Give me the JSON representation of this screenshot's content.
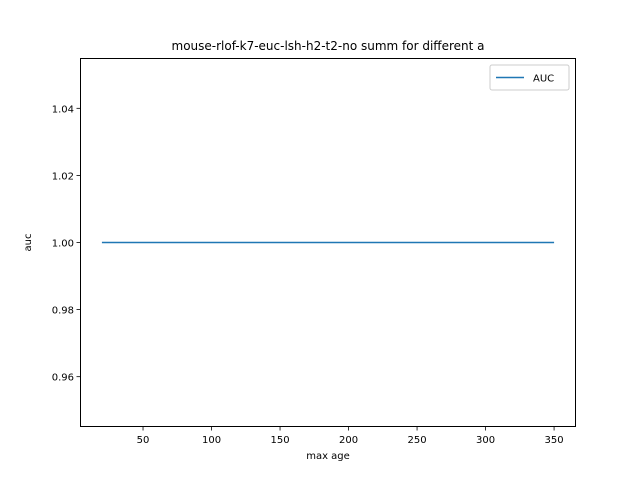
{
  "chart_data": {
    "type": "line",
    "title": "mouse-rlof-k7-euc-lsh-h2-t2-no summ for different a",
    "xlabel": "max age",
    "ylabel": "auc",
    "xlim": [
      4,
      366
    ],
    "ylim": [
      0.945,
      1.055
    ],
    "x_ticks": [
      50,
      100,
      150,
      200,
      250,
      300,
      350
    ],
    "y_ticks": [
      0.96,
      0.98,
      1.0,
      1.02,
      1.04
    ],
    "x_tick_labels": [
      "50",
      "100",
      "150",
      "200",
      "250",
      "300",
      "350"
    ],
    "y_tick_labels": [
      "0.96",
      "0.98",
      "1.00",
      "1.02",
      "1.04"
    ],
    "legend_position": "top-right",
    "grid": false,
    "series": [
      {
        "name": "AUC",
        "color": "#1f77b4",
        "x": [
          20,
          350
        ],
        "y": [
          1.0,
          1.0
        ]
      }
    ]
  }
}
